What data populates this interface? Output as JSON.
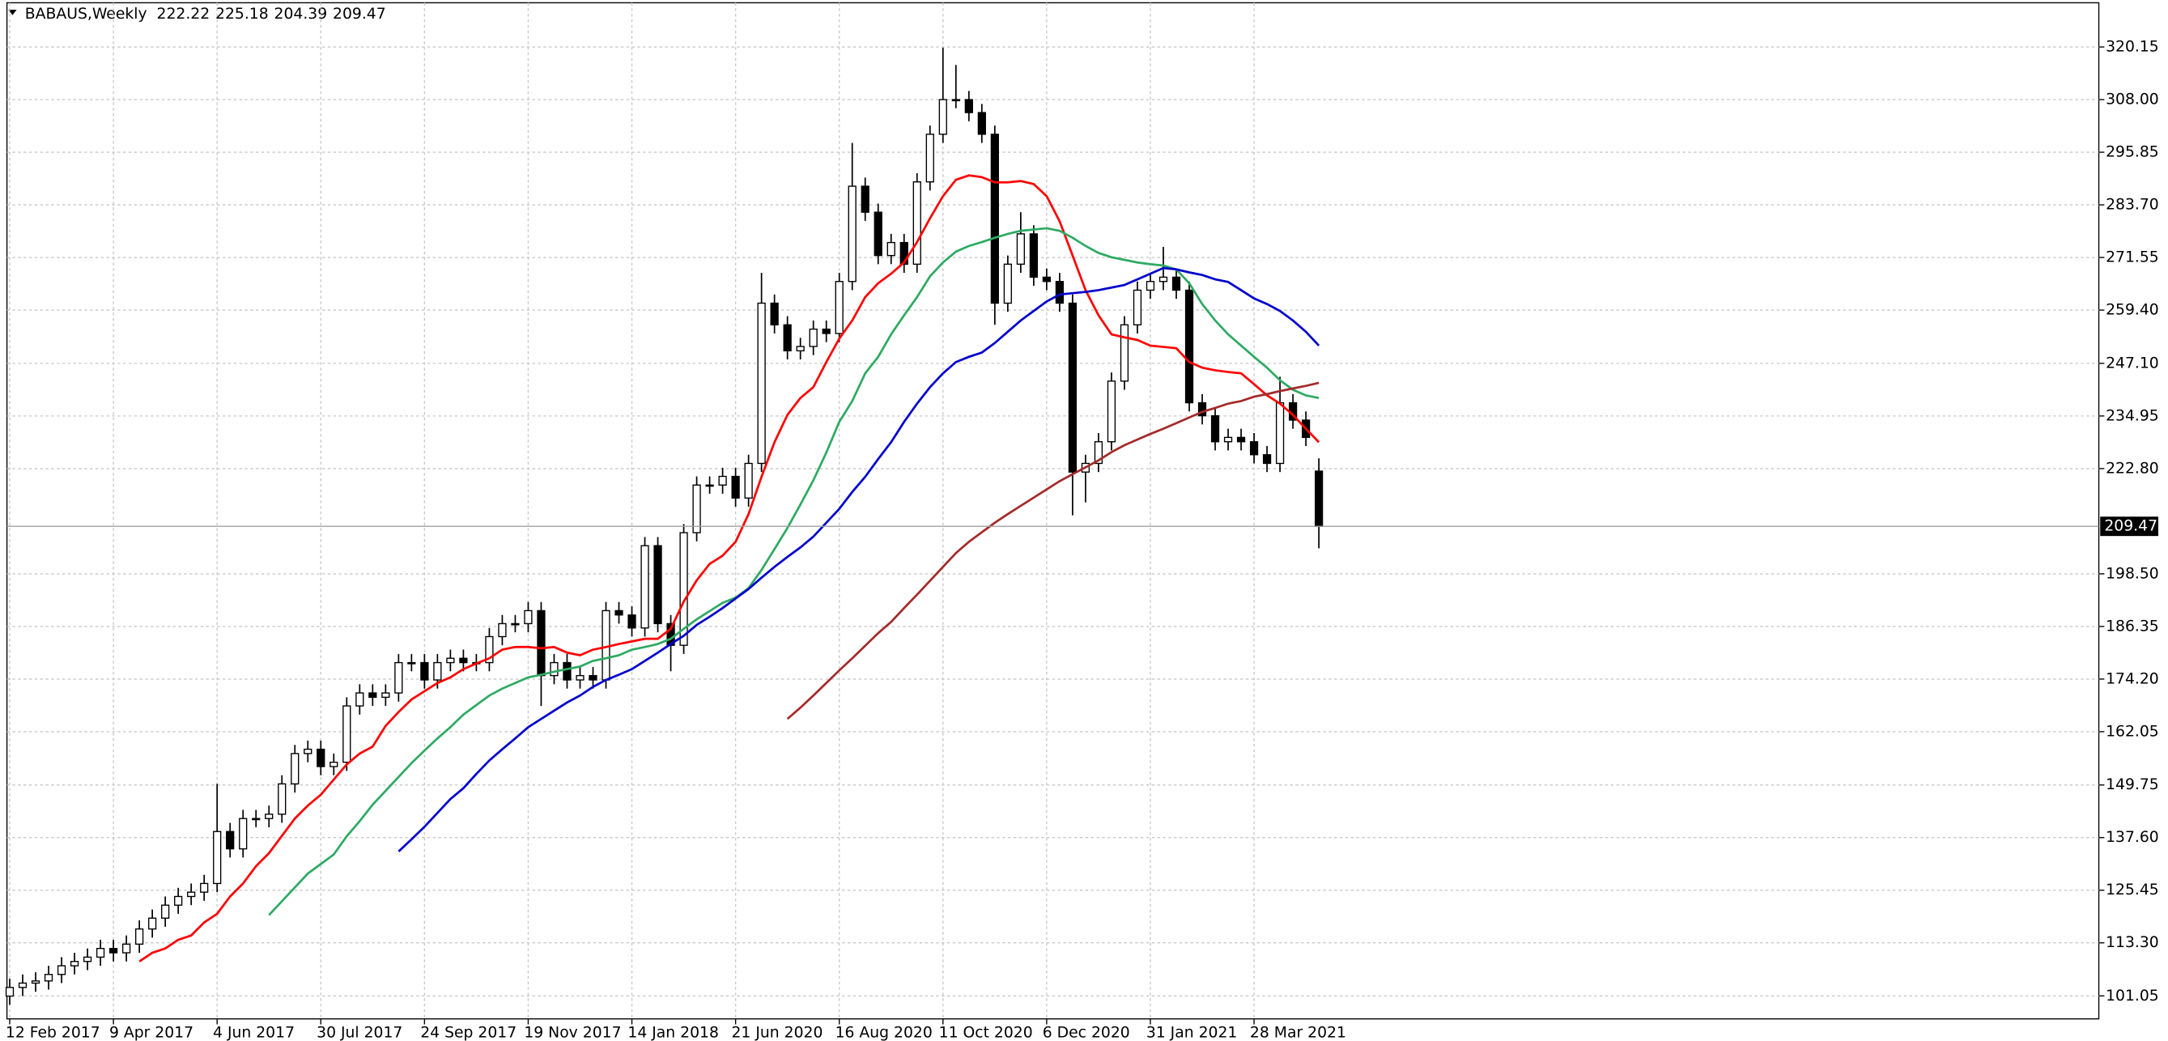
{
  "chart_data": {
    "type": "candlestick",
    "title": "BABAUS,Weekly",
    "categories": [
      "12 Feb 2017",
      null,
      null,
      null,
      null,
      null,
      null,
      null,
      "9 Apr 2017",
      null,
      null,
      null,
      null,
      null,
      null,
      null,
      "4 Jun 2017",
      null,
      null,
      null,
      null,
      null,
      null,
      null,
      "30 Jul 2017",
      null,
      null,
      null,
      null,
      null,
      null,
      null,
      "24 Sep 2017",
      null,
      null,
      null,
      null,
      null,
      null,
      null,
      "19 Nov 2017",
      null,
      null,
      null,
      null,
      null,
      null,
      null,
      "14 Jan 2018",
      null,
      null,
      null,
      null,
      null,
      null,
      null,
      "21 Jun 2020",
      null,
      null,
      null,
      null,
      null,
      null,
      null,
      "16 Aug 2020",
      null,
      null,
      null,
      null,
      null,
      null,
      null,
      "11 Oct 2020",
      null,
      null,
      null,
      null,
      null,
      null,
      null,
      "6 Dec 2020",
      null,
      null,
      null,
      null,
      null,
      null,
      null,
      "31 Jan 2021",
      null,
      null,
      null,
      null,
      null,
      null,
      null,
      "28 Mar 2021",
      null,
      null,
      null,
      null,
      null
    ],
    "open": [
      101,
      103,
      104,
      104.5,
      106,
      108,
      109,
      110,
      112,
      111,
      113,
      116.5,
      119,
      122,
      124,
      125,
      127,
      139,
      135,
      142,
      142,
      143,
      150,
      157,
      158,
      154,
      155,
      168,
      171,
      170,
      171,
      178,
      178,
      174,
      178,
      179,
      178,
      178,
      184,
      187,
      187,
      190,
      175,
      178,
      174,
      175,
      174,
      190,
      189,
      186,
      205,
      187,
      182,
      208,
      219,
      219,
      221,
      216,
      224,
      261,
      256,
      250,
      251,
      255,
      254,
      266,
      288,
      282,
      272,
      275,
      270,
      289,
      300,
      308,
      308,
      305,
      300,
      261,
      270,
      277,
      267,
      266,
      261,
      222,
      224,
      229,
      243,
      256,
      264,
      266,
      267,
      264,
      238,
      235,
      229,
      230,
      229,
      226,
      224,
      238,
      234,
      222.22
    ],
    "high": [
      105,
      106,
      106.5,
      108,
      110,
      111,
      112,
      114,
      114,
      115,
      118.5,
      121,
      124,
      126,
      127,
      129,
      150,
      141,
      144,
      144,
      145,
      152,
      159,
      160,
      160,
      157,
      170,
      173,
      173,
      173,
      180,
      180,
      180,
      180,
      181,
      181,
      180,
      186,
      189,
      189,
      192,
      192,
      180,
      180,
      177,
      177,
      192,
      192,
      191,
      207,
      207,
      189,
      210,
      221,
      221,
      223,
      223,
      226,
      268,
      263,
      258,
      253,
      257,
      257,
      268,
      298,
      290,
      284,
      277,
      277,
      291,
      302,
      320,
      316,
      310,
      307,
      302,
      272,
      282,
      279,
      269,
      268,
      263,
      226,
      231,
      245,
      258,
      266,
      268,
      274,
      269,
      266,
      240,
      237,
      232,
      232,
      231,
      228,
      244,
      240,
      236,
      225.18
    ],
    "low": [
      99,
      101,
      102,
      102.5,
      104,
      106,
      107,
      108,
      109,
      109,
      111,
      114.5,
      117,
      120,
      122,
      123,
      125,
      133,
      133,
      140,
      140,
      141,
      148,
      155,
      152,
      152,
      153,
      166,
      168,
      168,
      169,
      176,
      172,
      172,
      176,
      176,
      176,
      176,
      182,
      185,
      185,
      168,
      173,
      172,
      172,
      172,
      172,
      187,
      184,
      184,
      185,
      176,
      180,
      206,
      217,
      217,
      214,
      214,
      222,
      254,
      248,
      248,
      249,
      252,
      252,
      264,
      280,
      270,
      270,
      268,
      268,
      287,
      298,
      306,
      303,
      298,
      256,
      259,
      268,
      265,
      264,
      259,
      212,
      215,
      222,
      227,
      241,
      254,
      262,
      264,
      262,
      236,
      233,
      227,
      227,
      227,
      224,
      222,
      222,
      232,
      228,
      204.39
    ],
    "close": [
      103,
      104,
      104.5,
      106,
      108,
      109,
      110,
      112,
      111,
      113,
      116.5,
      119,
      122,
      124,
      125,
      127,
      139,
      135,
      142,
      142,
      143,
      150,
      157,
      158,
      154,
      155,
      168,
      171,
      170,
      171,
      178,
      178,
      174,
      178,
      179,
      178,
      178,
      184,
      187,
      187,
      190,
      175,
      178,
      174,
      175,
      174,
      190,
      189,
      186,
      205,
      187,
      182,
      208,
      219,
      219,
      221,
      216,
      224,
      261,
      256,
      250,
      251,
      255,
      254,
      266,
      288,
      282,
      272,
      275,
      270,
      289,
      300,
      308,
      308,
      305,
      300,
      261,
      270,
      277,
      267,
      266,
      261,
      222,
      224,
      229,
      243,
      256,
      264,
      266,
      267,
      264,
      238,
      235,
      229,
      230,
      229,
      226,
      224,
      238,
      234,
      230,
      209.47
    ],
    "up_color": "#ffffff",
    "down_color": "#000000",
    "wick_color": "#000000",
    "lines": [
      {
        "color": "#ff0000",
        "values": [
          null,
          null,
          null,
          null,
          null,
          null,
          null,
          null,
          null,
          null,
          109,
          111,
          112,
          114,
          115,
          118,
          120,
          124,
          127,
          131,
          134,
          138,
          142,
          145,
          147.5,
          151,
          154.5,
          157,
          158.6,
          163.4,
          166.6,
          169.5,
          171.4,
          173.3,
          174.6,
          176.5,
          177.8,
          179,
          181,
          181.6,
          181.6,
          181.3,
          181.6,
          180.3,
          179.7,
          181,
          181.6,
          182.3,
          182.9,
          183.5,
          183.5,
          185.8,
          192.1,
          197,
          200.8,
          202.7,
          205.9,
          212.3,
          220.9,
          228.9,
          235.2,
          239.1,
          241.6,
          247.4,
          252.8,
          257,
          262.4,
          265.6,
          267.8,
          270.4,
          275.1,
          280.6,
          285.7,
          289.5,
          290.5,
          290.1,
          288.9,
          288.9,
          289.2,
          288.5,
          285.7,
          279.9,
          272,
          264,
          258.2,
          253.8,
          253.1,
          252.5,
          251.2,
          250.9,
          250.6,
          247.4,
          246.1,
          245.5,
          245.1,
          244.8,
          242.3,
          239.7,
          237.8,
          235.2,
          232,
          228.9
        ]
      },
      {
        "color": "#2eaa62",
        "values": [
          null,
          null,
          null,
          null,
          null,
          null,
          null,
          null,
          null,
          null,
          null,
          null,
          null,
          null,
          null,
          null,
          null,
          null,
          null,
          null,
          119.7,
          122.9,
          126.1,
          129.3,
          131.5,
          133.7,
          137.9,
          141.4,
          145.2,
          148.4,
          151.6,
          154.8,
          157.7,
          160.5,
          163.1,
          166,
          168.2,
          170.4,
          172,
          173.3,
          174.6,
          175.2,
          175.9,
          176.5,
          177.1,
          178.4,
          179,
          179.7,
          181,
          181.6,
          182.3,
          183.5,
          185.8,
          188,
          189.9,
          191.8,
          193,
          195.2,
          199.4,
          204.2,
          209.1,
          214.5,
          220.1,
          226.5,
          233.6,
          238.4,
          244.8,
          248.6,
          253.8,
          258.2,
          262.4,
          267.2,
          270.4,
          272.9,
          274.2,
          275.1,
          276.1,
          277,
          277.7,
          278,
          278.3,
          277.7,
          276.1,
          274.2,
          272.6,
          271.6,
          271,
          270.4,
          270,
          269.7,
          268.8,
          265.6,
          260.8,
          257,
          253.8,
          251.2,
          248.6,
          246.1,
          243.2,
          241,
          239.7,
          239.1
        ]
      },
      {
        "color": "#0000cd",
        "values": [
          null,
          null,
          null,
          null,
          null,
          null,
          null,
          null,
          null,
          null,
          null,
          null,
          null,
          null,
          null,
          null,
          null,
          null,
          null,
          null,
          null,
          null,
          null,
          null,
          null,
          null,
          null,
          null,
          null,
          null,
          134.4,
          137.2,
          140.1,
          143.3,
          146.5,
          149,
          152.3,
          155.4,
          158,
          160.5,
          163.1,
          165,
          166.9,
          168.8,
          170.4,
          172.4,
          174,
          175.2,
          176.5,
          178.4,
          180.3,
          182.3,
          184.2,
          186.7,
          188.6,
          190.6,
          192.8,
          195,
          197.6,
          200.1,
          202.4,
          204.6,
          207.1,
          210.3,
          213.5,
          217.4,
          220.9,
          225,
          228.9,
          233.6,
          237.8,
          241.6,
          244.8,
          247.4,
          248.6,
          249.6,
          251.8,
          254.4,
          257,
          259.2,
          261.4,
          263,
          263.3,
          263.6,
          264,
          264.6,
          265.2,
          266.5,
          267.8,
          269.1,
          268.8,
          268.1,
          267.5,
          266.5,
          265.9,
          264,
          262.1,
          260.8,
          259.2,
          257,
          254.4,
          251.2
        ]
      },
      {
        "color": "#a52a2a",
        "values": [
          null,
          null,
          null,
          null,
          null,
          null,
          null,
          null,
          null,
          null,
          null,
          null,
          null,
          null,
          null,
          null,
          null,
          null,
          null,
          null,
          null,
          null,
          null,
          null,
          null,
          null,
          null,
          null,
          null,
          null,
          null,
          null,
          null,
          null,
          null,
          null,
          null,
          null,
          null,
          null,
          null,
          null,
          null,
          null,
          null,
          null,
          null,
          null,
          null,
          null,
          null,
          null,
          null,
          null,
          null,
          null,
          null,
          null,
          null,
          null,
          165,
          167.6,
          170.4,
          173.3,
          176.2,
          179,
          181.9,
          184.8,
          187.4,
          190.6,
          193.7,
          196.9,
          200.1,
          203.3,
          205.9,
          208.1,
          210.3,
          212.3,
          214.2,
          216.1,
          218,
          219.9,
          221.5,
          223.1,
          224.7,
          226.6,
          228.2,
          229.5,
          230.8,
          232,
          233.3,
          234.6,
          235.9,
          236.8,
          237.8,
          238.4,
          239.4,
          240,
          240.7,
          241.3,
          241.9,
          242.6
        ]
      }
    ],
    "ylim": [
      95.74,
      330.36
    ],
    "yticks": [
      101.05,
      {
        "value": 113.3,
        "label": "113.30"
      },
      125.45,
      {
        "value": 137.6,
        "label": "137.60"
      },
      149.75,
      162.05,
      {
        "value": 174.2,
        "label": "174.20"
      },
      186.35,
      {
        "value": 198.5,
        "label": "198.50"
      },
      {
        "value": 222.8,
        "label": "222.80"
      },
      234.95,
      {
        "value": 247.1,
        "label": "247.10"
      },
      {
        "value": 259.4,
        "label": "259.40"
      },
      271.55,
      {
        "value": 283.7,
        "label": "283.70"
      },
      295.85,
      {
        "value": 308,
        "label": "308.00"
      },
      320.15
    ],
    "grid": true
  }
}
